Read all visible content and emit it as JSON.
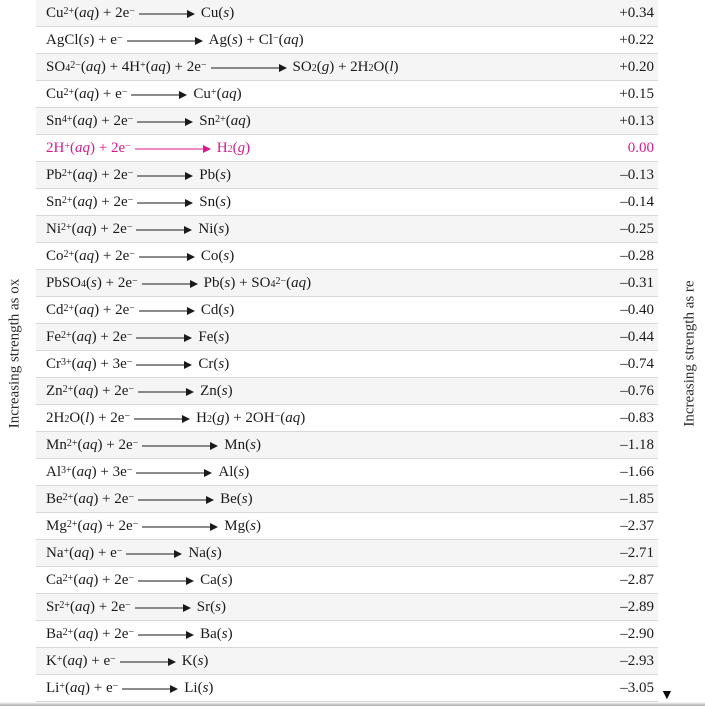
{
  "sideLabels": {
    "left": "Increasing strength as ox",
    "right": "Increasing strength as re"
  },
  "arrowLengths": {
    "short": 56,
    "long": 76
  },
  "highlightColor": "#d81b8c",
  "rows": [
    {
      "reaction": "Cu<sup>2+</sup>(<i class='st'>aq</i>) + 2e<sup>−</sup> |ARR_S| Cu(<i class='st'>s</i>)",
      "value": "+0.34",
      "hl": false
    },
    {
      "reaction": "AgCl(<i class='st'>s</i>) + e<sup>−</sup> |ARR_L| Ag(<i class='st'>s</i>) + Cl<sup>−</sup>(<i class='st'>aq</i>)",
      "value": "+0.22",
      "hl": false
    },
    {
      "reaction": "SO<sub>4</sub><sup>2−</sup>(<i class='st'>aq</i>) + 4H<sup>+</sup>(<i class='st'>aq</i>) + 2e<sup>−</sup> |ARR_L| SO<sub>2</sub>(<i class='st'>g</i>) + 2H<sub>2</sub>O(<i class='st'>l</i>)",
      "value": "+0.20",
      "hl": false
    },
    {
      "reaction": "Cu<sup>2+</sup>(<i class='st'>aq</i>) + e<sup>−</sup> |ARR_S| Cu<sup>+</sup>(<i class='st'>aq</i>)",
      "value": "+0.15",
      "hl": false
    },
    {
      "reaction": "Sn<sup>4+</sup>(<i class='st'>aq</i>) + 2e<sup>−</sup> |ARR_S| Sn<sup>2+</sup>(<i class='st'>aq</i>)",
      "value": "+0.13",
      "hl": false
    },
    {
      "reaction": "2H<sup>+</sup>(<i class='st'>aq</i>) + 2e<sup>−</sup> |ARR_L| H<sub>2</sub>(<i class='st'>g</i>)",
      "value": "0.00",
      "hl": true
    },
    {
      "reaction": "Pb<sup>2+</sup>(<i class='st'>aq</i>) + 2e<sup>−</sup> |ARR_S| Pb(<i class='st'>s</i>)",
      "value": "–0.13",
      "hl": false
    },
    {
      "reaction": "Sn<sup>2+</sup>(<i class='st'>aq</i>) + 2e<sup>−</sup> |ARR_S| Sn(<i class='st'>s</i>)",
      "value": "–0.14",
      "hl": false
    },
    {
      "reaction": "Ni<sup>2+</sup>(<i class='st'>aq</i>) + 2e<sup>−</sup> |ARR_S| Ni(<i class='st'>s</i>)",
      "value": "–0.25",
      "hl": false
    },
    {
      "reaction": "Co<sup>2+</sup>(<i class='st'>aq</i>) + 2e<sup>−</sup> |ARR_S| Co(<i class='st'>s</i>)",
      "value": "–0.28",
      "hl": false
    },
    {
      "reaction": "PbSO<sub>4</sub>(<i class='st'>s</i>) + 2e<sup>−</sup> |ARR_S| Pb(<i class='st'>s</i>) + SO<sub>4</sub><sup>2−</sup>(<i class='st'>aq</i>)",
      "value": "–0.31",
      "hl": false
    },
    {
      "reaction": "Cd<sup>2+</sup>(<i class='st'>aq</i>) + 2e<sup>−</sup> |ARR_S| Cd(<i class='st'>s</i>)",
      "value": "–0.40",
      "hl": false
    },
    {
      "reaction": "Fe<sup>2+</sup>(<i class='st'>aq</i>) + 2e<sup>−</sup> |ARR_S| Fe(<i class='st'>s</i>)",
      "value": "–0.44",
      "hl": false
    },
    {
      "reaction": "Cr<sup>3+</sup>(<i class='st'>aq</i>) + 3e<sup>−</sup> |ARR_S| Cr(<i class='st'>s</i>)",
      "value": "–0.74",
      "hl": false
    },
    {
      "reaction": "Zn<sup>2+</sup>(<i class='st'>aq</i>) + 2e<sup>−</sup> |ARR_S| Zn(<i class='st'>s</i>)",
      "value": "–0.76",
      "hl": false
    },
    {
      "reaction": "2H<sub>2</sub>O(<i class='st'>l</i>) + 2e<sup>−</sup> |ARR_S| H<sub>2</sub>(<i class='st'>g</i>) + 2OH<sup>−</sup>(<i class='st'>aq</i>)",
      "value": "–0.83",
      "hl": false
    },
    {
      "reaction": "Mn<sup>2+</sup>(<i class='st'>aq</i>) + 2e<sup>−</sup> |ARR_L| Mn(<i class='st'>s</i>)",
      "value": "–1.18",
      "hl": false
    },
    {
      "reaction": "Al<sup>3+</sup>(<i class='st'>aq</i>) + 3e<sup>−</sup> |ARR_L| Al(<i class='st'>s</i>)",
      "value": "–1.66",
      "hl": false
    },
    {
      "reaction": "Be<sup>2+</sup>(<i class='st'>aq</i>) + 2e<sup>−</sup> |ARR_L| Be(<i class='st'>s</i>)",
      "value": "–1.85",
      "hl": false
    },
    {
      "reaction": "Mg<sup>2+</sup>(<i class='st'>aq</i>) + 2e<sup>−</sup> |ARR_L| Mg(<i class='st'>s</i>)",
      "value": "–2.37",
      "hl": false
    },
    {
      "reaction": "Na<sup>+</sup>(<i class='st'>aq</i>) + e<sup>−</sup> |ARR_S| Na(<i class='st'>s</i>)",
      "value": "–2.71",
      "hl": false
    },
    {
      "reaction": "Ca<sup>2+</sup>(<i class='st'>aq</i>) + 2e<sup>−</sup> |ARR_S| Ca(<i class='st'>s</i>)",
      "value": "–2.87",
      "hl": false
    },
    {
      "reaction": "Sr<sup>2+</sup>(<i class='st'>aq</i>) + 2e<sup>−</sup> |ARR_S| Sr(<i class='st'>s</i>)",
      "value": "–2.89",
      "hl": false
    },
    {
      "reaction": "Ba<sup>2+</sup>(<i class='st'>aq</i>) + 2e<sup>−</sup> |ARR_S| Ba(<i class='st'>s</i>)",
      "value": "–2.90",
      "hl": false
    },
    {
      "reaction": "K<sup>+</sup>(<i class='st'>aq</i>) + e<sup>−</sup> |ARR_S| K(<i class='st'>s</i>)",
      "value": "–2.93",
      "hl": false
    },
    {
      "reaction": "Li<sup>+</sup>(<i class='st'>aq</i>) + e<sup>−</sup> |ARR_S| Li(<i class='st'>s</i>)",
      "value": "–3.05",
      "hl": false
    }
  ]
}
